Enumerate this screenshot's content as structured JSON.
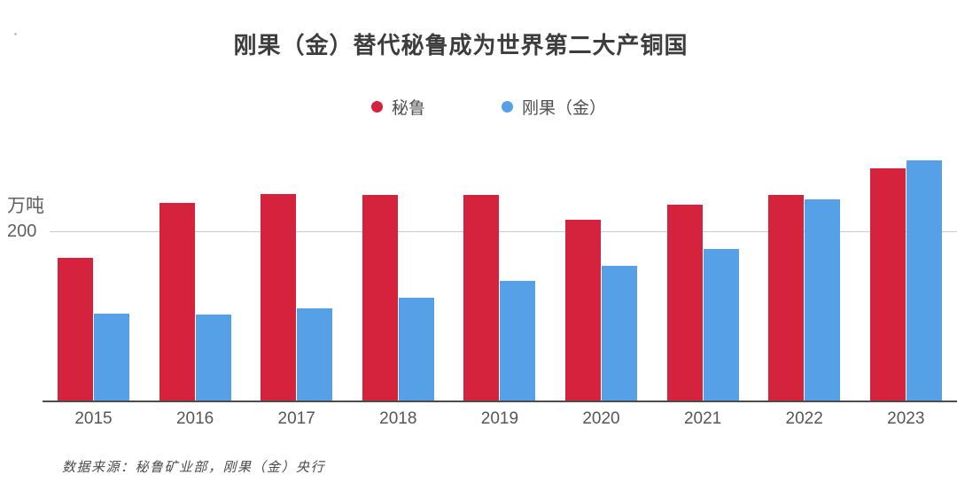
{
  "chart_data": {
    "type": "bar",
    "title": "刚果（金）替代秘鲁成为世界第二大产铜国",
    "unit_label": "万吨",
    "categories": [
      "2015",
      "2016",
      "2017",
      "2018",
      "2019",
      "2020",
      "2021",
      "2022",
      "2023"
    ],
    "series": [
      {
        "name": "秘鲁",
        "color": "#d5233e",
        "values": [
          170,
          235,
          245,
          244,
          244,
          215,
          233,
          244,
          276
        ]
      },
      {
        "name": "刚果（金）",
        "color": "#55a0e6",
        "values": [
          103,
          102,
          110,
          122,
          142,
          160,
          180,
          239,
          285
        ]
      }
    ],
    "y_axis": {
      "tick_label": "200",
      "tick_value": 200,
      "ylim": [
        0,
        300
      ],
      "gridlines": [
        200
      ]
    },
    "legend_position": "top",
    "grid": "single-horizontal-line",
    "source": "数据来源：秘鲁矿业部，刚果（金）央行"
  },
  "colors": {
    "peru_red": "#d5233e",
    "congo_blue": "#55a0e6",
    "axis_line": "#4c4c4c",
    "gridline": "#cbcbcb",
    "text": "#565656"
  }
}
